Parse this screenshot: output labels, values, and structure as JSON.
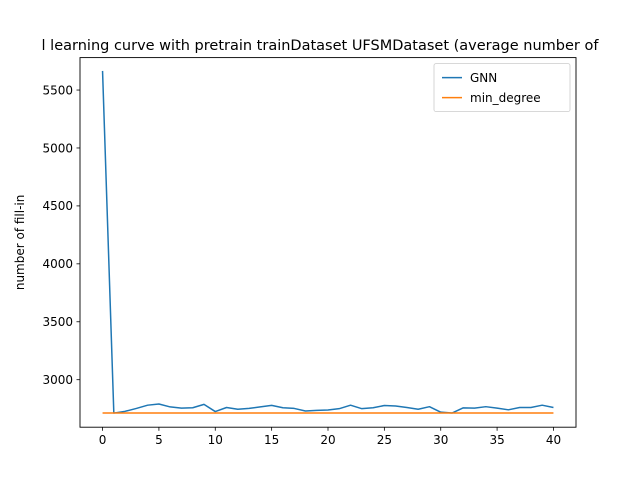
{
  "chart_data": {
    "type": "line",
    "title": "l learning curve with pretrain trainDataset UFSMDataset (average number of",
    "xlabel": "",
    "ylabel": "number of fill-in",
    "xlim": [
      -2,
      42
    ],
    "ylim": [
      2590,
      5780
    ],
    "xticks": [
      0,
      5,
      10,
      15,
      20,
      25,
      30,
      35,
      40
    ],
    "yticks": [
      3000,
      3500,
      4000,
      4500,
      5000,
      5500
    ],
    "grid": false,
    "legend_position": "top-right",
    "x": [
      0,
      1,
      2,
      3,
      4,
      5,
      6,
      7,
      8,
      9,
      10,
      11,
      12,
      13,
      14,
      15,
      16,
      17,
      18,
      19,
      20,
      21,
      22,
      23,
      24,
      25,
      26,
      27,
      28,
      29,
      30,
      31,
      32,
      33,
      34,
      35,
      36,
      37,
      38,
      39,
      40
    ],
    "series": [
      {
        "name": "GNN",
        "color": "#1f77b4",
        "values": [
          5665,
          2712,
          2727,
          2752,
          2780,
          2790,
          2765,
          2755,
          2758,
          2787,
          2725,
          2760,
          2745,
          2752,
          2765,
          2778,
          2758,
          2752,
          2730,
          2735,
          2738,
          2750,
          2780,
          2750,
          2758,
          2777,
          2773,
          2760,
          2745,
          2767,
          2720,
          2712,
          2757,
          2755,
          2767,
          2755,
          2740,
          2760,
          2760,
          2780,
          2760
        ]
      },
      {
        "name": "min_degree",
        "color": "#ff7f0e",
        "values": [
          2712,
          2712,
          2712,
          2712,
          2712,
          2712,
          2712,
          2712,
          2712,
          2712,
          2712,
          2712,
          2712,
          2712,
          2712,
          2712,
          2712,
          2712,
          2712,
          2712,
          2712,
          2712,
          2712,
          2712,
          2712,
          2712,
          2712,
          2712,
          2712,
          2712,
          2712,
          2712,
          2712,
          2712,
          2712,
          2712,
          2712,
          2712,
          2712,
          2712,
          2712
        ]
      }
    ]
  }
}
